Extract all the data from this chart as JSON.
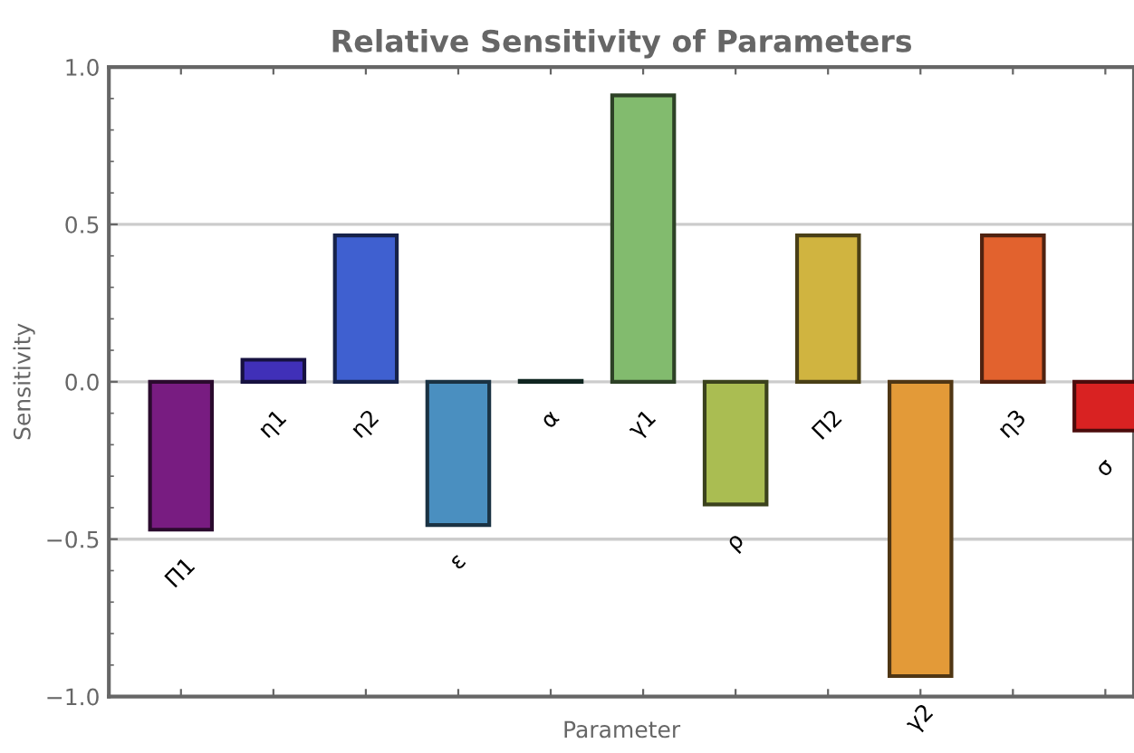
{
  "chart_data": {
    "type": "bar",
    "title": "Relative Sensitivity of Parameters",
    "xlabel": "Parameter",
    "ylabel": "Sensitivity",
    "categories": [
      "Π1",
      "η1",
      "η2",
      "ε",
      "α",
      "γ1",
      "ρ",
      "Π2",
      "γ2",
      "η3",
      "σ"
    ],
    "values": [
      -0.47,
      0.07,
      0.465,
      -0.455,
      0.003,
      0.91,
      -0.39,
      0.465,
      -0.935,
      0.465,
      -0.155
    ],
    "colors": [
      "#781c81",
      "#4030b8",
      "#3f60d0",
      "#4a8fc0",
      "#2a6a5a",
      "#82bb6e",
      "#aabd52",
      "#d0b440",
      "#e39a38",
      "#e2622e",
      "#d92222"
    ],
    "ylim": [
      -1.0,
      1.0
    ],
    "yticks": [
      {
        "value": -1.0,
        "label": "−1.0"
      },
      {
        "value": -0.5,
        "label": "−0.5"
      },
      {
        "value": 0.0,
        "label": "0.0"
      },
      {
        "value": 0.5,
        "label": "0.5"
      },
      {
        "value": 1.0,
        "label": "1.0"
      }
    ],
    "grid": "y"
  }
}
